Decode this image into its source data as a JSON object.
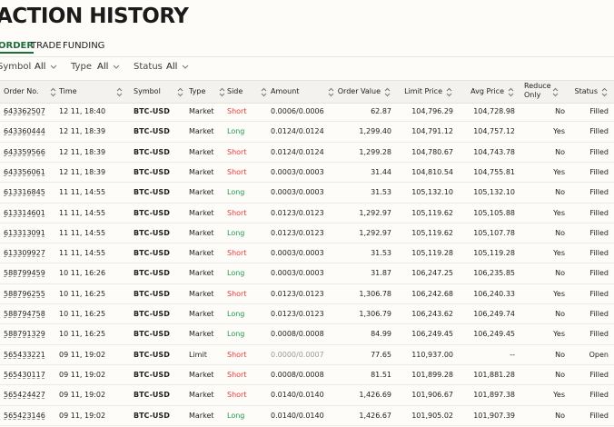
{
  "header": {
    "title": "ACTION HISTORY"
  },
  "tabs": [
    "ORDER",
    "TRADE",
    "FUNDING"
  ],
  "filters": [
    {
      "label": "Symbol",
      "value": "All"
    },
    {
      "label": "Type",
      "value": "All"
    },
    {
      "label": "Status",
      "value": "All"
    }
  ],
  "table": {
    "columns": [
      "Order No.",
      "Time",
      "Symbol",
      "Type",
      "Side",
      "Amount",
      "Order Value",
      "Limit Price",
      "Avg Price",
      "Reduce Only",
      "Status"
    ],
    "rows": [
      [
        "643362507",
        "12 11, 18:40",
        "BTC-USD",
        "Market",
        "Short",
        "0.0006/0.0006",
        "62.87",
        "104,796.29",
        "104,728.98",
        "No",
        "Filled"
      ],
      [
        "643360444",
        "12 11, 18:39",
        "BTC-USD",
        "Market",
        "Long",
        "0.0124/0.0124",
        "1,299.40",
        "104,791.12",
        "104,757.12",
        "Yes",
        "Filled"
      ],
      [
        "643359566",
        "12 11, 18:39",
        "BTC-USD",
        "Market",
        "Short",
        "0.0124/0.0124",
        "1,299.28",
        "104,780.67",
        "104,743.78",
        "No",
        "Filled"
      ],
      [
        "643356061",
        "12 11, 18:39",
        "BTC-USD",
        "Market",
        "Short",
        "0.0003/0.0003",
        "31.44",
        "104,810.54",
        "104,755.81",
        "Yes",
        "Filled"
      ],
      [
        "613316845",
        "11 11, 14:55",
        "BTC-USD",
        "Market",
        "Long",
        "0.0003/0.0003",
        "31.53",
        "105,132.10",
        "105,132.10",
        "No",
        "Filled"
      ],
      [
        "613314601",
        "11 11, 14:55",
        "BTC-USD",
        "Market",
        "Short",
        "0.0123/0.0123",
        "1,292.97",
        "105,119.62",
        "105,105.88",
        "Yes",
        "Filled"
      ],
      [
        "613313091",
        "11 11, 14:55",
        "BTC-USD",
        "Market",
        "Long",
        "0.0123/0.0123",
        "1,292.97",
        "105,119.62",
        "105,107.78",
        "No",
        "Filled"
      ],
      [
        "613309927",
        "11 11, 14:55",
        "BTC-USD",
        "Market",
        "Short",
        "0.0003/0.0003",
        "31.53",
        "105,119.28",
        "105,119.28",
        "Yes",
        "Filled"
      ],
      [
        "588799459",
        "10 11, 16:26",
        "BTC-USD",
        "Market",
        "Long",
        "0.0003/0.0003",
        "31.87",
        "106,247.25",
        "106,235.85",
        "No",
        "Filled"
      ],
      [
        "588796255",
        "10 11, 16:25",
        "BTC-USD",
        "Market",
        "Short",
        "0.0123/0.0123",
        "1,306.78",
        "106,242.68",
        "106,240.33",
        "Yes",
        "Filled"
      ],
      [
        "588794758",
        "10 11, 16:25",
        "BTC-USD",
        "Market",
        "Long",
        "0.0123/0.0123",
        "1,306.79",
        "106,243.62",
        "106,249.74",
        "No",
        "Filled"
      ],
      [
        "588791329",
        "10 11, 16:25",
        "BTC-USD",
        "Market",
        "Long",
        "0.0008/0.0008",
        "84.99",
        "106,249.45",
        "106,249.45",
        "Yes",
        "Filled"
      ],
      [
        "565433221",
        "09 11, 19:02",
        "BTC-USD",
        "Limit",
        "Short",
        "0.0000/0.0007",
        "77.65",
        "110,937.00",
        "--",
        "No",
        "Open"
      ],
      [
        "565430117",
        "09 11, 19:02",
        "BTC-USD",
        "Market",
        "Short",
        "0.0008/0.0008",
        "81.51",
        "101,899.28",
        "101,881.28",
        "No",
        "Filled"
      ],
      [
        "565424427",
        "09 11, 19:02",
        "BTC-USD",
        "Market",
        "Short",
        "0.0140/0.0140",
        "1,426.69",
        "101,906.67",
        "101,897.38",
        "Yes",
        "Filled"
      ],
      [
        "565423146",
        "09 11, 19:02",
        "BTC-USD",
        "Market",
        "Long",
        "0.0140/0.0140",
        "1,426.67",
        "101,905.02",
        "101,907.39",
        "No",
        "Filled"
      ]
    ]
  }
}
